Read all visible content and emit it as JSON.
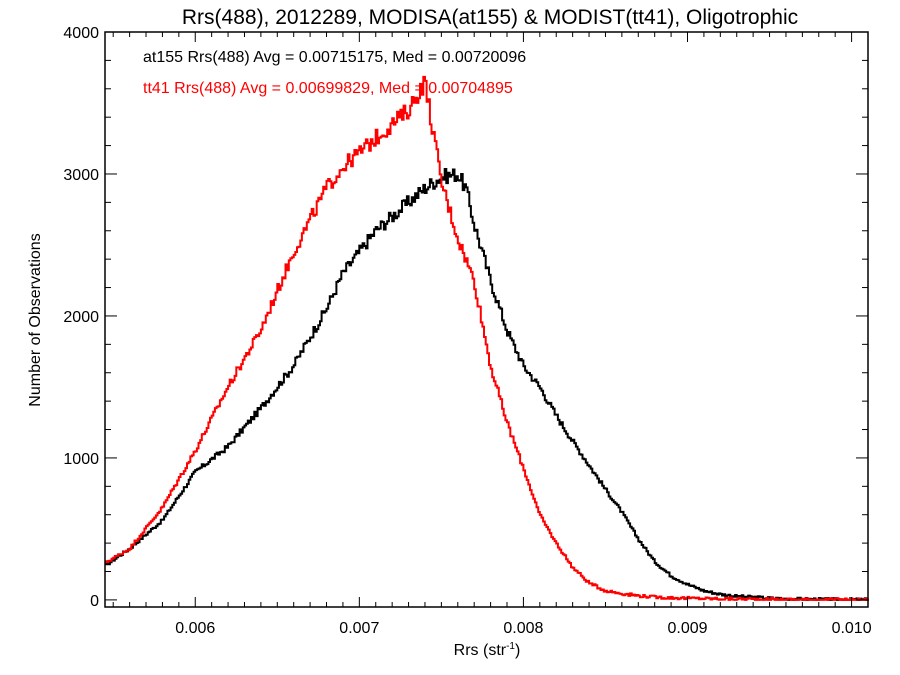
{
  "chart_data": {
    "type": "line",
    "title": "Rrs(488), 2012289, MODISA(at155) & MODIST(tt41), Oligotrophic",
    "xlabel": "Rrs (str",
    "xlabel_sup": "-1",
    "xlabel_close": ")",
    "ylabel": "Number of Observations",
    "xlim": [
      0.00545,
      0.0101
    ],
    "ylim": [
      -50,
      4000
    ],
    "xticks": [
      0.006,
      0.007,
      0.008,
      0.009,
      0.01
    ],
    "xtick_labels": [
      "0.006",
      "0.007",
      "0.008",
      "0.009",
      "0.010"
    ],
    "yticks": [
      0,
      1000,
      2000,
      3000,
      4000
    ],
    "ytick_labels": [
      "0",
      "1000",
      "2000",
      "3000",
      "4000"
    ],
    "grid": false,
    "legend_position": "top-left",
    "annotations": [
      {
        "text": "at155 Rrs(488) Avg = 0.00715175, Med = 0.00720096",
        "color": "#000000"
      },
      {
        "text": "tt41 Rrs(488) Avg = 0.00699829, Med = 0.00704895",
        "color": "#ff0000"
      }
    ],
    "series": [
      {
        "color": "#000000",
        "x": [
          0.00545,
          0.0056,
          0.0058,
          0.006,
          0.0062,
          0.0064,
          0.0066,
          0.0068,
          0.0069,
          0.007,
          0.0071,
          0.0072,
          0.0073,
          0.0074,
          0.0075,
          0.0076,
          0.00765,
          0.0077,
          0.0078,
          0.0079,
          0.008,
          0.0081,
          0.0082,
          0.0083,
          0.0084,
          0.0085,
          0.0086,
          0.0087,
          0.0088,
          0.0089,
          0.009,
          0.0091,
          0.0092,
          0.0093,
          0.0094,
          0.0095,
          0.0096,
          0.0098,
          0.0101
        ],
        "y": [
          240,
          360,
          560,
          900,
          1080,
          1350,
          1650,
          2050,
          2300,
          2450,
          2600,
          2700,
          2800,
          2900,
          2980,
          3000,
          2900,
          2650,
          2250,
          1900,
          1650,
          1500,
          1300,
          1120,
          950,
          780,
          620,
          430,
          270,
          170,
          110,
          65,
          40,
          25,
          20,
          12,
          8,
          4,
          2
        ]
      },
      {
        "color": "#ff0000",
        "x": [
          0.00545,
          0.0056,
          0.0058,
          0.006,
          0.0062,
          0.0064,
          0.0066,
          0.0068,
          0.0069,
          0.007,
          0.0071,
          0.0072,
          0.0073,
          0.00735,
          0.0074,
          0.0075,
          0.0076,
          0.0077,
          0.0078,
          0.0079,
          0.008,
          0.0081,
          0.0082,
          0.0083,
          0.0084,
          0.0085,
          0.0086,
          0.0087,
          0.0088,
          0.0089,
          0.009,
          0.0092,
          0.0094,
          0.0096,
          0.0098,
          0.0101
        ],
        "y": [
          260,
          360,
          650,
          1050,
          1500,
          1900,
          2450,
          2900,
          3050,
          3150,
          3250,
          3350,
          3450,
          3550,
          3650,
          2950,
          2550,
          2250,
          1650,
          1250,
          930,
          600,
          400,
          230,
          120,
          65,
          45,
          30,
          20,
          15,
          12,
          8,
          5,
          3,
          2,
          1
        ]
      }
    ]
  }
}
